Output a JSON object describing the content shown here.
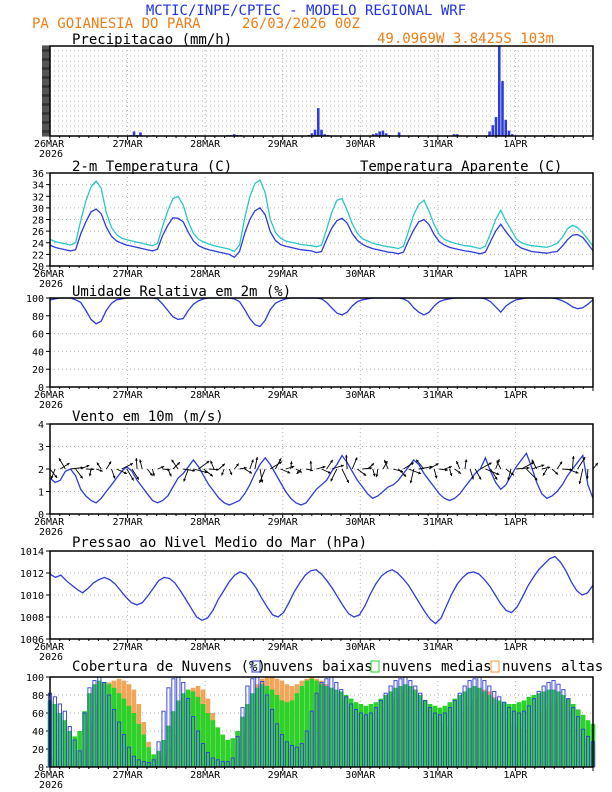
{
  "header": {
    "title": "MCTIC/INPE/CPTEC - MODELO REGIONAL WRF",
    "location": "PA GOIANESIA DO PARA",
    "run": "26/03/2026 00Z",
    "coords": "49.0969W 3.8425S 103m"
  },
  "colors": {
    "title": "#1e32e6",
    "location": "#f07d14",
    "line": "#2d3cdc",
    "apparent": "#28c8c8",
    "low": "#2d3cdc",
    "medium": "#2ad22a",
    "high": "#f0963c",
    "grid": "#b4b4b4"
  },
  "x_axis": {
    "days": [
      "26MAR",
      "27MAR",
      "28MAR",
      "29MAR",
      "30MAR",
      "31MAR",
      "1APR"
    ],
    "year": "2026",
    "range_hours": [
      0,
      168
    ]
  },
  "chart_data": [
    {
      "type": "bar",
      "title": "Precipitacao (mm/h)",
      "ylim": [
        0,
        1
      ],
      "yticks": [],
      "x_hours": [
        24,
        25,
        26,
        27,
        28,
        32,
        55,
        56,
        57,
        58,
        59,
        80,
        81,
        82,
        83,
        84,
        85,
        86,
        100,
        101,
        102,
        103,
        104,
        105,
        108,
        125,
        126,
        136,
        137,
        138,
        139,
        140,
        141,
        142,
        143,
        154,
        155
      ],
      "values": [
        0.005,
        0.01,
        0.05,
        0.01,
        0.04,
        0.01,
        0.01,
        0.01,
        0.02,
        0.01,
        0.01,
        0.01,
        0.03,
        0.07,
        0.31,
        0.07,
        0.02,
        0.01,
        0.02,
        0.03,
        0.05,
        0.06,
        0.03,
        0.01,
        0.04,
        0.02,
        0.02,
        0.05,
        0.12,
        0.21,
        1.0,
        0.61,
        0.18,
        0.06,
        0.02,
        0.01,
        0.01
      ]
    },
    {
      "type": "line",
      "title": "2-m Temperatura (C)",
      "legend": "Temperatura Aparente (C)",
      "ylim": [
        20,
        36
      ],
      "yticks": [
        20,
        22,
        24,
        26,
        28,
        30,
        32,
        34,
        36
      ],
      "series": [
        {
          "name": "2-m Temperatura",
          "values": [
            23.6,
            23.2,
            23.0,
            22.8,
            22.6,
            22.8,
            25.5,
            27.6,
            29.3,
            29.8,
            29.0,
            26.7,
            25.1,
            24.3,
            23.9,
            23.6,
            23.4,
            23.2,
            23.0,
            22.8,
            22.6,
            22.9,
            25.3,
            27.0,
            28.3,
            28.2,
            27.6,
            25.8,
            24.3,
            23.5,
            23.1,
            22.8,
            22.6,
            22.4,
            22.2,
            22.0,
            21.5,
            22.5,
            25.6,
            28.0,
            29.5,
            30.0,
            28.8,
            25.9,
            24.4,
            23.7,
            23.4,
            23.2,
            23.0,
            22.8,
            22.7,
            22.6,
            22.3,
            22.5,
            24.6,
            26.5,
            27.8,
            28.2,
            27.4,
            25.6,
            24.4,
            23.7,
            23.3,
            23.0,
            22.8,
            22.6,
            22.4,
            22.3,
            22.1,
            22.4,
            24.4,
            26.2,
            27.6,
            28.0,
            27.1,
            25.4,
            24.2,
            23.6,
            23.2,
            23.0,
            22.8,
            22.6,
            22.5,
            22.3,
            22.1,
            22.4,
            24.2,
            26.0,
            27.2,
            25.9,
            24.8,
            23.7,
            23.1,
            22.8,
            22.5,
            22.4,
            22.3,
            22.2,
            22.4,
            22.5,
            23.4,
            24.5,
            25.3,
            25.4,
            24.9,
            23.8,
            22.6
          ]
        },
        {
          "name": "Temperatura Aparente",
          "values": [
            24.6,
            24.2,
            24.0,
            23.8,
            23.6,
            24.0,
            27.8,
            31.2,
            33.6,
            34.6,
            33.4,
            29.2,
            26.6,
            25.4,
            24.8,
            24.5,
            24.3,
            24.1,
            23.9,
            23.7,
            23.5,
            23.9,
            26.9,
            29.5,
            31.6,
            32.0,
            30.5,
            27.6,
            25.6,
            24.6,
            24.1,
            23.8,
            23.5,
            23.3,
            23.1,
            22.9,
            22.5,
            23.6,
            28.2,
            31.9,
            34.2,
            34.8,
            32.6,
            28.0,
            25.8,
            24.8,
            24.3,
            24.1,
            23.9,
            23.7,
            23.6,
            23.5,
            23.3,
            23.6,
            26.3,
            29.2,
            31.3,
            31.6,
            29.6,
            27.3,
            25.6,
            24.7,
            24.3,
            23.9,
            23.7,
            23.5,
            23.3,
            23.2,
            23.0,
            23.4,
            26.0,
            28.8,
            30.6,
            31.3,
            29.4,
            27.1,
            25.4,
            24.6,
            24.2,
            23.9,
            23.7,
            23.5,
            23.4,
            23.2,
            23.0,
            23.4,
            25.6,
            28.0,
            29.6,
            27.7,
            26.3,
            24.7,
            24.0,
            23.7,
            23.5,
            23.4,
            23.3,
            23.2,
            23.5,
            23.9,
            24.9,
            26.4,
            27.0,
            26.6,
            25.7,
            24.6,
            23.4
          ]
        }
      ]
    },
    {
      "type": "line",
      "title": "Umidade Relativa em 2m (%)",
      "ylim": [
        0,
        100
      ],
      "yticks": [
        0,
        20,
        40,
        60,
        80,
        100
      ],
      "series": [
        {
          "name": "Umidade",
          "values": [
            98,
            99,
            100,
            100,
            100,
            98,
            95,
            86,
            76,
            71,
            74,
            86,
            94,
            98,
            99,
            100,
            100,
            100,
            100,
            100,
            100,
            99,
            93,
            86,
            79,
            76,
            77,
            86,
            93,
            97,
            99,
            100,
            100,
            100,
            100,
            100,
            99,
            96,
            87,
            77,
            70,
            68,
            75,
            87,
            94,
            97,
            99,
            100,
            100,
            100,
            100,
            100,
            100,
            99,
            95,
            89,
            83,
            81,
            84,
            91,
            96,
            98,
            99,
            100,
            100,
            100,
            100,
            100,
            100,
            99,
            96,
            89,
            84,
            81,
            84,
            91,
            96,
            98,
            99,
            100,
            100,
            100,
            100,
            100,
            100,
            99,
            96,
            90,
            84,
            91,
            95,
            98,
            99,
            100,
            100,
            100,
            100,
            100,
            100,
            99,
            97,
            94,
            90,
            88,
            89,
            93,
            98
          ]
        }
      ]
    },
    {
      "type": "line",
      "title": "Vento em 10m (m/s)",
      "ylim": [
        0,
        4
      ],
      "yticks": [
        0,
        1,
        2,
        3,
        4
      ],
      "series": [
        {
          "name": "Vento",
          "values": [
            1.6,
            1.4,
            1.5,
            1.9,
            2.0,
            1.7,
            1.1,
            0.8,
            0.6,
            0.5,
            0.7,
            1.0,
            1.3,
            1.6,
            1.9,
            2.1,
            1.9,
            1.5,
            1.2,
            0.9,
            0.6,
            0.5,
            0.6,
            0.8,
            1.2,
            1.6,
            1.8,
            2.1,
            2.4,
            2.1,
            1.7,
            1.3,
            1.0,
            0.7,
            0.5,
            0.4,
            0.5,
            0.6,
            0.9,
            1.3,
            1.8,
            2.2,
            2.5,
            2.2,
            1.8,
            1.4,
            1.0,
            0.7,
            0.5,
            0.4,
            0.5,
            0.8,
            1.1,
            1.3,
            1.5,
            1.9,
            2.2,
            2.6,
            2.3,
            1.9,
            1.5,
            1.2,
            0.9,
            0.7,
            0.8,
            1.0,
            1.2,
            1.3,
            1.5,
            1.8,
            2.1,
            2.4,
            2.2,
            1.8,
            1.5,
            1.2,
            0.9,
            0.7,
            0.6,
            0.7,
            0.9,
            1.2,
            1.5,
            1.8,
            2.0,
            2.5,
            1.9,
            1.4,
            1.1,
            1.3,
            1.7,
            2.1,
            2.4,
            2.7,
            2.1,
            1.4,
            0.9,
            0.7,
            0.8,
            1.0,
            1.3,
            1.7,
            2.0,
            2.3,
            2.6,
            1.3,
            0.7
          ]
        }
      ]
    },
    {
      "type": "line",
      "title": "Pressao ao Nivel Medio do Mar (hPa)",
      "ylim": [
        1006,
        1014
      ],
      "yticks": [
        1006,
        1008,
        1010,
        1012,
        1014
      ],
      "series": [
        {
          "name": "Pressao",
          "values": [
            1011.9,
            1011.6,
            1011.8,
            1011.3,
            1010.9,
            1010.5,
            1010.2,
            1010.6,
            1011.1,
            1011.4,
            1011.6,
            1011.4,
            1011.0,
            1010.4,
            1009.8,
            1009.3,
            1009.1,
            1009.3,
            1009.9,
            1010.6,
            1011.3,
            1011.6,
            1011.5,
            1011.1,
            1010.4,
            1009.6,
            1008.8,
            1008.0,
            1007.7,
            1007.9,
            1008.6,
            1009.6,
            1010.4,
            1011.2,
            1011.8,
            1012.1,
            1011.9,
            1011.3,
            1010.6,
            1009.7,
            1008.9,
            1008.2,
            1008.0,
            1008.4,
            1009.3,
            1010.3,
            1011.1,
            1011.8,
            1012.2,
            1012.3,
            1011.9,
            1011.3,
            1010.6,
            1009.8,
            1009.0,
            1008.3,
            1008.0,
            1008.2,
            1009.0,
            1010.1,
            1011.0,
            1011.7,
            1012.1,
            1012.3,
            1012.0,
            1011.5,
            1010.9,
            1010.1,
            1009.3,
            1008.5,
            1007.8,
            1007.4,
            1007.9,
            1009.0,
            1010.1,
            1011.0,
            1011.6,
            1012.0,
            1012.1,
            1011.9,
            1011.4,
            1010.8,
            1010.0,
            1009.2,
            1008.6,
            1008.4,
            1008.9,
            1009.8,
            1010.8,
            1011.6,
            1012.3,
            1012.8,
            1013.3,
            1013.5,
            1013.0,
            1012.2,
            1011.2,
            1010.4,
            1010.0,
            1010.2,
            1010.9
          ]
        }
      ]
    },
    {
      "type": "bar",
      "title": "Cobertura de Nuvens (%)",
      "ylim": [
        0,
        100
      ],
      "yticks": [
        0,
        20,
        40,
        60,
        80,
        100
      ],
      "series": [
        {
          "name": "nuvens baixas",
          "values": [
            82,
            78,
            70,
            62,
            45,
            30,
            18,
            60,
            88,
            96,
            100,
            94,
            80,
            64,
            50,
            36,
            22,
            12,
            8,
            6,
            5,
            8,
            28,
            62,
            88,
            98,
            100,
            94,
            76,
            56,
            40,
            26,
            16,
            10,
            8,
            6,
            6,
            10,
            34,
            66,
            90,
            98,
            100,
            95,
            80,
            64,
            48,
            36,
            28,
            24,
            22,
            26,
            40,
            62,
            82,
            94,
            98,
            100,
            94,
            86,
            78,
            70,
            64,
            60,
            58,
            60,
            66,
            74,
            82,
            90,
            96,
            98,
            100,
            96,
            90,
            82,
            74,
            66,
            60,
            58,
            60,
            66,
            74,
            82,
            90,
            96,
            98,
            100,
            96,
            90,
            84,
            78,
            72,
            66,
            62,
            60,
            62,
            68,
            76,
            84,
            90,
            94,
            96,
            92,
            86,
            76,
            66,
            56,
            42,
            34,
            28
          ]
        },
        {
          "name": "nuvens medias",
          "values": [
            74,
            70,
            60,
            52,
            40,
            34,
            40,
            62,
            82,
            92,
            96,
            94,
            92,
            88,
            82,
            76,
            68,
            60,
            48,
            36,
            22,
            14,
            18,
            30,
            46,
            62,
            74,
            82,
            86,
            84,
            78,
            70,
            60,
            52,
            44,
            36,
            30,
            32,
            40,
            56,
            70,
            82,
            88,
            92,
            90,
            86,
            80,
            74,
            72,
            74,
            82,
            90,
            96,
            98,
            96,
            92,
            90,
            88,
            86,
            84,
            80,
            76,
            72,
            70,
            68,
            70,
            72,
            76,
            80,
            84,
            88,
            90,
            92,
            90,
            86,
            80,
            74,
            70,
            68,
            66,
            68,
            72,
            76,
            80,
            84,
            88,
            90,
            88,
            84,
            80,
            76,
            74,
            72,
            70,
            70,
            72,
            74,
            78,
            80,
            82,
            84,
            86,
            86,
            84,
            80,
            76,
            70,
            64,
            58,
            52,
            48
          ]
        },
        {
          "name": "nuvens altas",
          "values": [
            10,
            8,
            6,
            4,
            4,
            4,
            6,
            20,
            50,
            70,
            84,
            90,
            94,
            96,
            98,
            96,
            92,
            86,
            70,
            50,
            28,
            14,
            10,
            12,
            20,
            36,
            52,
            68,
            80,
            88,
            90,
            86,
            76,
            60,
            44,
            30,
            22,
            20,
            26,
            40,
            60,
            78,
            92,
            98,
            100,
            100,
            98,
            96,
            92,
            90,
            92,
            96,
            98,
            100,
            98,
            96,
            92,
            88,
            84,
            80,
            74,
            68,
            62,
            58,
            54,
            52,
            54,
            58,
            64,
            70,
            76,
            82,
            86,
            88,
            86,
            80,
            72,
            64,
            56,
            50,
            46,
            44,
            46,
            52,
            60,
            68,
            76,
            82,
            86,
            84,
            78,
            70,
            62,
            54,
            48,
            44,
            42,
            44,
            48,
            54,
            60,
            66,
            72,
            74,
            70,
            62,
            52,
            42,
            34,
            28,
            24
          ]
        }
      ]
    }
  ],
  "panels": [
    {
      "title": "Precipitacao (mm/h)",
      "tick_labels": []
    },
    {
      "title": "2-m Temperatura (C)",
      "legend": "Temperatura Aparente (C)",
      "tick_labels": [
        "20",
        "22",
        "24",
        "26",
        "28",
        "30",
        "32",
        "34",
        "36"
      ]
    },
    {
      "title": "Umidade Relativa em 2m (%)",
      "tick_labels": [
        "0",
        "20",
        "40",
        "60",
        "80",
        "100"
      ]
    },
    {
      "title": "Vento em 10m (m/s)",
      "tick_labels": [
        "0",
        "1",
        "2",
        "3",
        "4"
      ]
    },
    {
      "title": "Pressao ao Nivel Medio do Mar (hPa)",
      "tick_labels": [
        "1006",
        "1008",
        "1010",
        "1012",
        "1014"
      ]
    },
    {
      "title": "Cobertura de Nuvens (%)",
      "tick_labels": [
        "0",
        "20",
        "40",
        "60",
        "80",
        "100"
      ]
    }
  ],
  "cloud_legend": {
    "low": "nuvens baixas",
    "medium": "nuvens medias",
    "high": "nuvens altas"
  }
}
